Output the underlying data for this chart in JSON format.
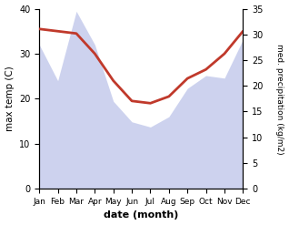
{
  "months": [
    "Jan",
    "Feb",
    "Mar",
    "Apr",
    "May",
    "Jun",
    "Jul",
    "Aug",
    "Sep",
    "Oct",
    "Nov",
    "Dec"
  ],
  "temp_max": [
    35.5,
    35.0,
    34.5,
    30.0,
    24.0,
    19.5,
    19.0,
    20.5,
    24.5,
    26.5,
    30.0,
    35.0
  ],
  "precip": [
    28.0,
    21.0,
    34.5,
    28.0,
    17.0,
    13.0,
    12.0,
    14.0,
    19.5,
    22.0,
    21.5,
    29.0
  ],
  "temp_ylim": [
    0,
    40
  ],
  "precip_ylim": [
    0,
    35
  ],
  "temp_color": "#c0392b",
  "precip_fill_color": "#b8c0e8",
  "xlabel": "date (month)",
  "ylabel_left": "max temp (C)",
  "ylabel_right": "med. precipitation (kg/m2)",
  "temp_linewidth": 2.0,
  "background_color": "#ffffff"
}
